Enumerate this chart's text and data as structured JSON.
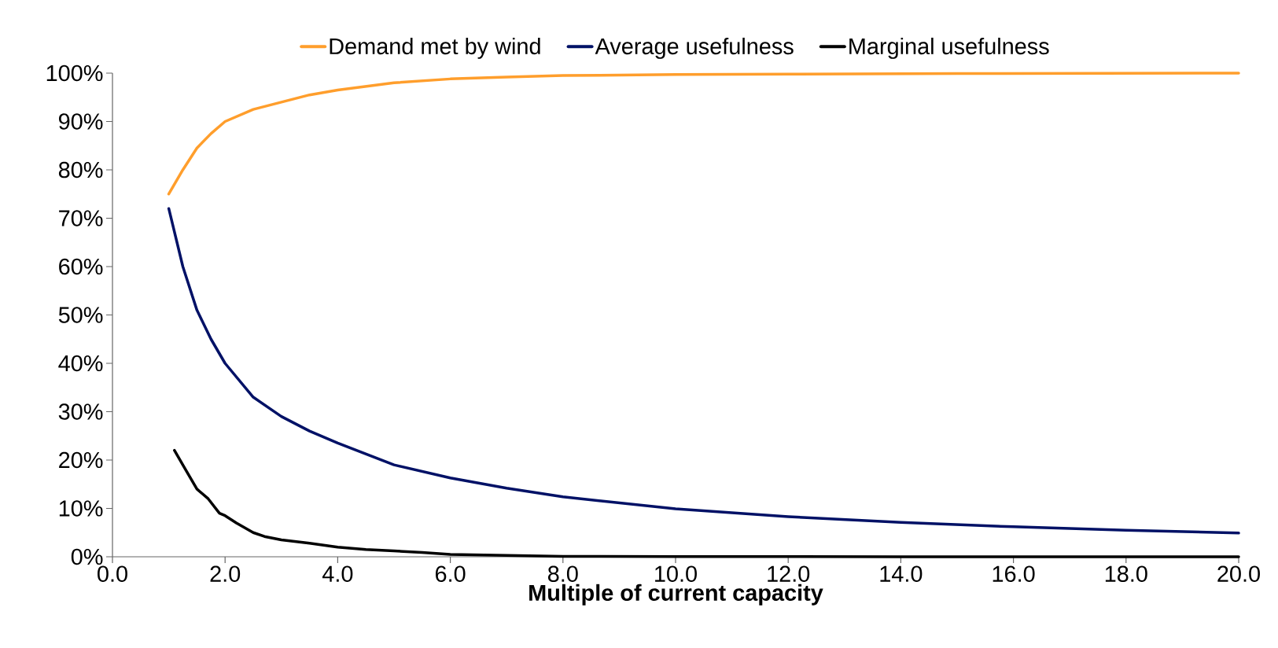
{
  "chart_data": {
    "type": "line",
    "xlabel": "Multiple of current capacity",
    "xlim": [
      0,
      20
    ],
    "ylim": [
      0,
      100
    ],
    "xticks": [
      {
        "value": 0,
        "label": "0.0"
      },
      {
        "value": 2,
        "label": "2.0"
      },
      {
        "value": 4,
        "label": "4.0"
      },
      {
        "value": 6,
        "label": "6.0"
      },
      {
        "value": 8,
        "label": "8.0"
      },
      {
        "value": 10,
        "label": "10.0"
      },
      {
        "value": 12,
        "label": "12.0"
      },
      {
        "value": 14,
        "label": "14.0"
      },
      {
        "value": 16,
        "label": "16.0"
      },
      {
        "value": 18,
        "label": "18.0"
      },
      {
        "value": 20,
        "label": "20.0"
      }
    ],
    "yticks": [
      {
        "value": 0,
        "label": "0%"
      },
      {
        "value": 10,
        "label": "10%"
      },
      {
        "value": 20,
        "label": "20%"
      },
      {
        "value": 30,
        "label": "30%"
      },
      {
        "value": 40,
        "label": "40%"
      },
      {
        "value": 50,
        "label": "50%"
      },
      {
        "value": 60,
        "label": "60%"
      },
      {
        "value": 70,
        "label": "70%"
      },
      {
        "value": 80,
        "label": "80%"
      },
      {
        "value": 90,
        "label": "90%"
      },
      {
        "value": 100,
        "label": "100%"
      }
    ],
    "legend": "top",
    "series": [
      {
        "name": "Demand met by wind",
        "color": "#ff9e2c",
        "x": [
          1,
          1.25,
          1.5,
          1.75,
          2,
          2.5,
          3,
          3.5,
          4,
          5,
          6,
          7,
          8,
          10,
          12,
          15,
          20
        ],
        "values": [
          75,
          80,
          84.5,
          87.5,
          90,
          92.5,
          94,
          95.5,
          96.5,
          98,
          98.8,
          99.2,
          99.5,
          99.7,
          99.8,
          99.9,
          100
        ]
      },
      {
        "name": "Average usefulness",
        "color": "#001166",
        "x": [
          1,
          1.25,
          1.5,
          1.75,
          2,
          2.5,
          3,
          3.5,
          4,
          5,
          6,
          7,
          8,
          10,
          12,
          14,
          16,
          18,
          20
        ],
        "values": [
          72,
          60,
          51,
          45,
          40,
          33,
          29,
          26,
          23.5,
          19,
          16.3,
          14.2,
          12.4,
          9.9,
          8.3,
          7.1,
          6.2,
          5.5,
          4.9
        ]
      },
      {
        "name": "Marginal usefulness",
        "color": "#000000",
        "x": [
          1.1,
          1.3,
          1.5,
          1.7,
          1.9,
          2,
          2.2,
          2.5,
          2.7,
          3,
          3.5,
          4,
          4.5,
          5,
          5.5,
          6,
          7,
          8,
          10,
          14,
          20
        ],
        "values": [
          22,
          18,
          14,
          12,
          9,
          8.5,
          7,
          5,
          4.2,
          3.5,
          2.8,
          2,
          1.5,
          1.2,
          0.9,
          0.5,
          0.3,
          0.1,
          0.05,
          0,
          0
        ]
      }
    ]
  }
}
